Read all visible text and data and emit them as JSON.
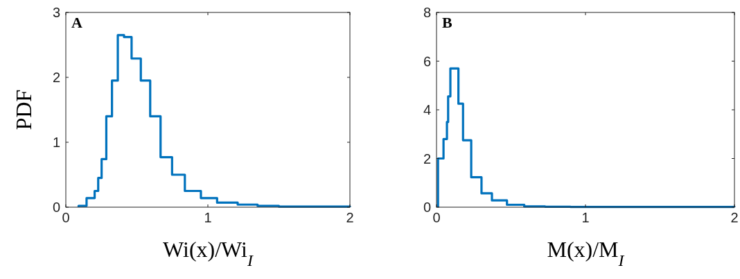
{
  "chart_data": [
    {
      "type": "histogram",
      "title": "A",
      "xlabel": "Wi(x)/Wi$_{I}$",
      "ylabel": "PDF",
      "color": "#0072bd",
      "xlim": [
        0,
        2
      ],
      "xticks": [
        0,
        1,
        2
      ],
      "ylim": [
        0,
        3
      ],
      "yticks": [
        0,
        1,
        2,
        3
      ],
      "bins": [
        0.09,
        0.146,
        0.203,
        0.228,
        0.252,
        0.285,
        0.325,
        0.366,
        0.41,
        0.463,
        0.528,
        0.594,
        0.667,
        0.748,
        0.838,
        0.951,
        1.065,
        1.21,
        1.35,
        1.5,
        1.7,
        2.0
      ],
      "values": [
        0.02,
        0.14,
        0.25,
        0.45,
        0.74,
        1.4,
        1.95,
        2.65,
        2.62,
        2.29,
        1.95,
        1.4,
        0.77,
        0.5,
        0.25,
        0.14,
        0.07,
        0.04,
        0.02,
        0.01,
        0.01
      ]
    },
    {
      "type": "histogram",
      "title": "B",
      "xlabel": "M(x)/M$_{I}$",
      "color": "#0072bd",
      "xlim": [
        0,
        2
      ],
      "xticks": [
        0,
        1,
        2
      ],
      "ylim": [
        0,
        8
      ],
      "yticks": [
        0,
        2,
        4,
        6,
        8
      ],
      "bins": [
        0.01,
        0.047,
        0.07,
        0.078,
        0.093,
        0.147,
        0.178,
        0.233,
        0.302,
        0.372,
        0.473,
        0.589,
        0.729,
        0.9,
        1.2,
        2.0
      ],
      "values": [
        2.0,
        2.8,
        3.5,
        4.55,
        5.7,
        4.25,
        2.75,
        1.23,
        0.57,
        0.28,
        0.1,
        0.03,
        0.02,
        0.01,
        0.01
      ]
    }
  ]
}
